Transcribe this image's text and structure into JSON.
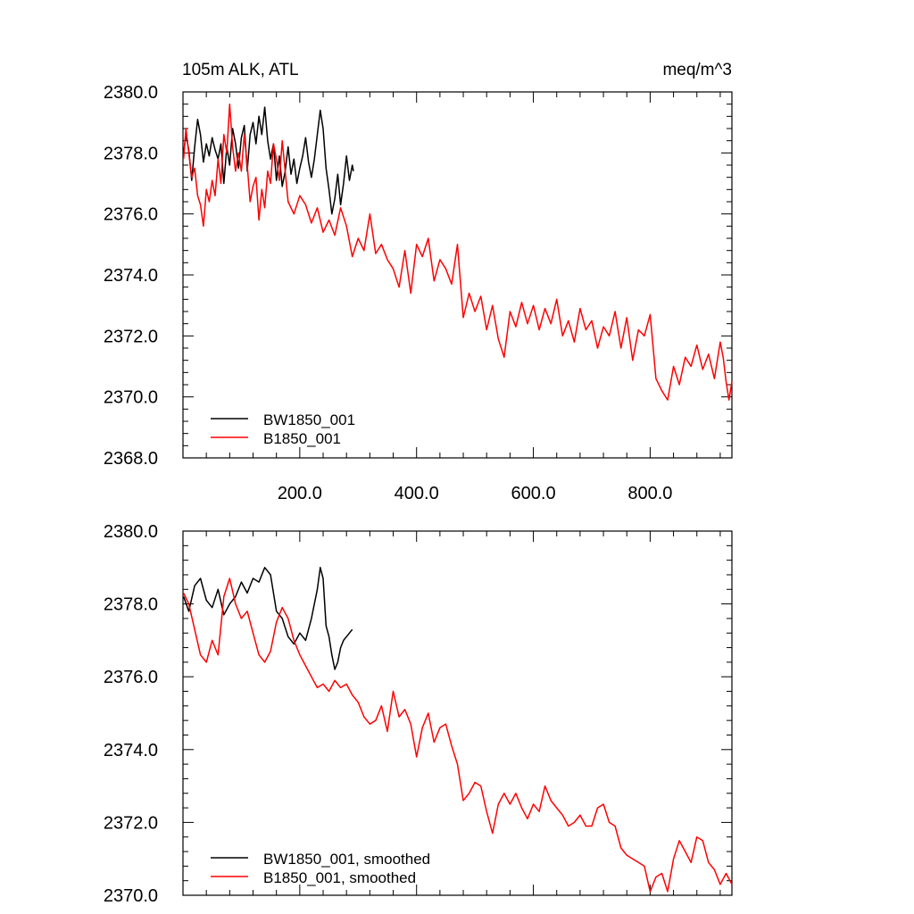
{
  "chart_data": [
    {
      "type": "line",
      "title_left": "105m ALK, ATL",
      "title_right": "meq/m^3",
      "xlim": [
        0,
        940
      ],
      "ylim": [
        2368,
        2380
      ],
      "x_ticks": [
        200,
        400,
        600,
        800
      ],
      "x_tick_labels": [
        "200.0",
        "400.0",
        "600.0",
        "800.0"
      ],
      "y_ticks": [
        2368,
        2370,
        2372,
        2374,
        2376,
        2378,
        2380
      ],
      "y_tick_labels": [
        "2368.0",
        "2370.0",
        "2372.0",
        "2374.0",
        "2376.0",
        "2378.0",
        "2380.0"
      ],
      "legend_position": "bottom-left",
      "series": [
        {
          "name": "BW1850_001",
          "color": "#000000",
          "x": [
            1,
            5,
            10,
            15,
            20,
            25,
            30,
            35,
            40,
            45,
            50,
            55,
            60,
            65,
            70,
            75,
            80,
            85,
            90,
            95,
            100,
            105,
            110,
            115,
            120,
            125,
            130,
            135,
            140,
            145,
            150,
            155,
            160,
            165,
            170,
            175,
            180,
            185,
            190,
            195,
            200,
            205,
            210,
            215,
            220,
            225,
            230,
            235,
            240,
            245,
            250,
            255,
            260,
            265,
            270,
            275,
            280,
            285,
            290,
            292
          ],
          "values": [
            2378.0,
            2378.6,
            2378.1,
            2377.1,
            2378.2,
            2379.1,
            2378.6,
            2377.7,
            2378.3,
            2377.9,
            2378.5,
            2378.1,
            2377.8,
            2378.3,
            2377.0,
            2378.2,
            2377.6,
            2378.8,
            2378.3,
            2377.5,
            2378.5,
            2378.9,
            2377.4,
            2378.6,
            2379.0,
            2378.3,
            2379.2,
            2378.6,
            2379.5,
            2378.4,
            2377.8,
            2378.3,
            2377.1,
            2377.9,
            2376.9,
            2377.4,
            2378.2,
            2377.3,
            2377.8,
            2377.0,
            2377.5,
            2377.9,
            2378.5,
            2377.7,
            2377.2,
            2377.8,
            2378.6,
            2379.4,
            2378.8,
            2377.5,
            2376.8,
            2376.0,
            2376.5,
            2377.3,
            2376.3,
            2377.0,
            2377.9,
            2377.1,
            2377.6,
            2377.4
          ]
        },
        {
          "name": "B1850_001",
          "color": "#ff0000",
          "x": [
            1,
            5,
            10,
            15,
            20,
            25,
            30,
            35,
            40,
            45,
            50,
            55,
            60,
            65,
            70,
            75,
            80,
            85,
            90,
            95,
            100,
            105,
            110,
            115,
            120,
            125,
            130,
            135,
            140,
            145,
            150,
            155,
            160,
            165,
            170,
            175,
            180,
            190,
            200,
            210,
            220,
            230,
            240,
            250,
            260,
            270,
            280,
            290,
            300,
            310,
            320,
            330,
            340,
            350,
            360,
            370,
            380,
            390,
            400,
            410,
            420,
            430,
            440,
            450,
            460,
            470,
            480,
            490,
            500,
            510,
            520,
            530,
            540,
            550,
            560,
            570,
            580,
            590,
            600,
            610,
            620,
            630,
            640,
            650,
            660,
            670,
            680,
            690,
            700,
            710,
            720,
            730,
            740,
            750,
            760,
            770,
            780,
            790,
            800,
            810,
            820,
            830,
            840,
            850,
            860,
            870,
            880,
            890,
            900,
            910,
            920,
            925,
            930,
            935,
            940
          ],
          "values": [
            2377.8,
            2378.8,
            2378.0,
            2377.2,
            2377.5,
            2376.6,
            2376.3,
            2375.6,
            2376.8,
            2376.4,
            2377.1,
            2376.6,
            2377.8,
            2377.0,
            2378.6,
            2378.0,
            2379.6,
            2378.2,
            2377.4,
            2378.0,
            2377.4,
            2378.6,
            2377.6,
            2376.4,
            2376.9,
            2377.2,
            2375.8,
            2376.8,
            2376.2,
            2377.4,
            2377.0,
            2378.3,
            2377.8,
            2377.1,
            2378.4,
            2377.4,
            2376.4,
            2376.0,
            2376.6,
            2376.3,
            2375.7,
            2376.2,
            2375.4,
            2375.8,
            2375.3,
            2376.2,
            2375.6,
            2374.6,
            2375.2,
            2374.8,
            2376.0,
            2374.7,
            2375.0,
            2374.5,
            2374.2,
            2373.6,
            2374.8,
            2373.4,
            2375.0,
            2374.6,
            2375.2,
            2373.8,
            2374.5,
            2374.2,
            2373.7,
            2375.0,
            2372.6,
            2373.4,
            2372.8,
            2373.3,
            2372.2,
            2373.0,
            2371.9,
            2371.3,
            2372.8,
            2372.3,
            2373.1,
            2372.4,
            2373.0,
            2372.2,
            2372.9,
            2372.4,
            2373.2,
            2372.0,
            2372.5,
            2371.8,
            2372.9,
            2372.2,
            2372.5,
            2371.6,
            2372.3,
            2372.0,
            2372.8,
            2371.6,
            2372.6,
            2371.2,
            2372.2,
            2372.0,
            2372.7,
            2370.6,
            2370.2,
            2369.9,
            2371.0,
            2370.4,
            2371.3,
            2371.0,
            2371.7,
            2370.9,
            2371.4,
            2370.6,
            2371.8,
            2371.3,
            2370.5,
            2369.9,
            2370.5
          ]
        }
      ]
    },
    {
      "type": "line",
      "xlim": [
        0,
        940
      ],
      "ylim": [
        2370,
        2380
      ],
      "y_ticks": [
        2370,
        2372,
        2374,
        2376,
        2378,
        2380
      ],
      "y_tick_labels": [
        "2370.0",
        "2372.0",
        "2374.0",
        "2376.0",
        "2378.0",
        "2380.0"
      ],
      "legend_position": "bottom-left",
      "series": [
        {
          "name": "BW1850_001, smoothed",
          "color": "#000000",
          "x": [
            1,
            10,
            20,
            30,
            40,
            50,
            60,
            70,
            80,
            90,
            100,
            110,
            120,
            130,
            140,
            150,
            160,
            170,
            180,
            190,
            200,
            210,
            220,
            230,
            235,
            240,
            245,
            250,
            255,
            260,
            265,
            270,
            275,
            280,
            285,
            290
          ],
          "values": [
            2378.2,
            2377.8,
            2378.5,
            2378.7,
            2378.1,
            2377.9,
            2378.4,
            2377.7,
            2378.0,
            2378.2,
            2378.6,
            2378.3,
            2378.7,
            2378.6,
            2379.0,
            2378.8,
            2377.8,
            2377.6,
            2377.1,
            2376.9,
            2377.2,
            2377.0,
            2377.6,
            2378.4,
            2379.0,
            2378.7,
            2377.4,
            2377.1,
            2376.6,
            2376.2,
            2376.4,
            2376.8,
            2377.0,
            2377.1,
            2377.2,
            2377.3
          ]
        },
        {
          "name": "B1850_001, smoothed",
          "color": "#ff0000",
          "x": [
            1,
            10,
            20,
            30,
            40,
            50,
            60,
            70,
            80,
            90,
            100,
            110,
            120,
            130,
            140,
            150,
            160,
            170,
            180,
            190,
            200,
            210,
            220,
            230,
            240,
            250,
            260,
            270,
            280,
            290,
            300,
            310,
            320,
            330,
            340,
            350,
            360,
            370,
            380,
            390,
            400,
            410,
            420,
            430,
            440,
            450,
            460,
            470,
            480,
            490,
            500,
            510,
            520,
            530,
            540,
            550,
            560,
            570,
            580,
            590,
            600,
            610,
            620,
            630,
            640,
            650,
            660,
            670,
            680,
            690,
            700,
            710,
            720,
            730,
            740,
            750,
            760,
            770,
            780,
            790,
            800,
            810,
            820,
            830,
            840,
            850,
            860,
            870,
            880,
            890,
            900,
            910,
            920,
            930,
            940
          ],
          "values": [
            2378.3,
            2378.0,
            2377.3,
            2376.6,
            2376.4,
            2377.0,
            2376.6,
            2378.2,
            2378.7,
            2378.0,
            2377.6,
            2377.8,
            2377.2,
            2376.6,
            2376.4,
            2376.7,
            2377.5,
            2377.9,
            2377.6,
            2377.0,
            2376.6,
            2376.3,
            2376.0,
            2375.7,
            2375.8,
            2375.6,
            2375.9,
            2375.7,
            2375.8,
            2375.5,
            2375.3,
            2374.9,
            2374.7,
            2374.8,
            2375.2,
            2374.5,
            2375.6,
            2374.9,
            2375.1,
            2374.7,
            2373.8,
            2374.6,
            2375.0,
            2374.2,
            2374.6,
            2374.7,
            2374.1,
            2373.6,
            2372.6,
            2372.8,
            2373.1,
            2373.0,
            2372.3,
            2371.7,
            2372.5,
            2372.8,
            2372.5,
            2372.8,
            2372.4,
            2372.1,
            2372.5,
            2372.3,
            2373.0,
            2372.6,
            2372.4,
            2372.2,
            2371.9,
            2372.0,
            2372.2,
            2371.9,
            2371.9,
            2372.4,
            2372.5,
            2372.0,
            2371.9,
            2371.3,
            2371.1,
            2371.0,
            2370.9,
            2370.8,
            2370.1,
            2370.5,
            2370.6,
            2370.1,
            2371.0,
            2371.5,
            2371.2,
            2370.9,
            2371.6,
            2371.5,
            2370.9,
            2370.7,
            2370.3,
            2370.6,
            2370.3
          ]
        }
      ]
    }
  ]
}
